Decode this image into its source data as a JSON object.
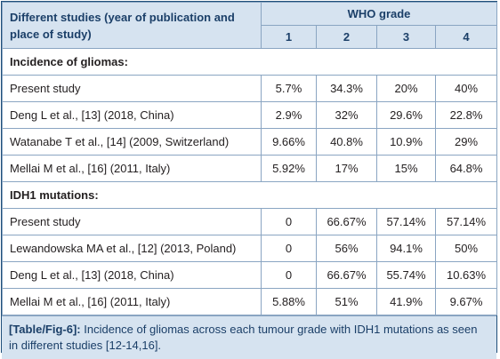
{
  "table": {
    "header": {
      "study_col": "Different studies (year of publication and place of study)",
      "group": "WHO grade",
      "grades": [
        "1",
        "2",
        "3",
        "4"
      ]
    },
    "sections": [
      {
        "title": "Incidence of gliomas:",
        "rows": [
          {
            "study": "Present study",
            "values": [
              "5.7%",
              "34.3%",
              "20%",
              "40%"
            ]
          },
          {
            "study": "Deng L et al., [13] (2018, China)",
            "values": [
              "2.9%",
              "32%",
              "29.6%",
              "22.8%"
            ]
          },
          {
            "study": "Watanabe T et al., [14] (2009, Switzerland)",
            "values": [
              "9.66%",
              "40.8%",
              "10.9%",
              "29%"
            ]
          },
          {
            "study": "Mellai M et al., [16] (2011, Italy)",
            "values": [
              "5.92%",
              "17%",
              "15%",
              "64.8%"
            ]
          }
        ]
      },
      {
        "title": "IDH1 mutations:",
        "rows": [
          {
            "study": "Present study",
            "values": [
              "0",
              "66.67%",
              "57.14%",
              "57.14%"
            ]
          },
          {
            "study": "Lewandowska MA et al., [12] (2013, Poland)",
            "values": [
              "0",
              "56%",
              "94.1%",
              "50%"
            ]
          },
          {
            "study": "Deng L et al., [13] (2018, China)",
            "values": [
              "0",
              "66.67%",
              "55.74%",
              "10.63%"
            ]
          },
          {
            "study": "Mellai M et al., [16] (2011, Italy)",
            "values": [
              "5.88%",
              "51%",
              "41.9%",
              "9.67%"
            ]
          }
        ]
      }
    ]
  },
  "caption": {
    "label": "[Table/Fig-6]:",
    "text": " Incidence of gliomas across each tumour grade with IDH1 mutations as seen in different studies [12-14,16]."
  }
}
